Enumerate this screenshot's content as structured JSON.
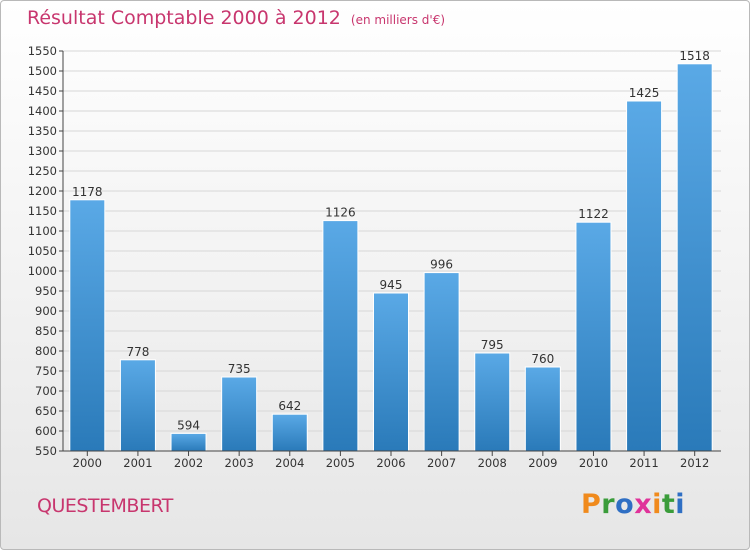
{
  "header": {
    "title": "Résultat Comptable 2000 à 2012",
    "subtitle": "(en milliers d'€)"
  },
  "footer": {
    "town": "QUESTEMBERT",
    "brand": "Proxiti",
    "brand_letters": [
      {
        "char": "P",
        "color": "#f08a1c"
      },
      {
        "char": "r",
        "color": "#3a9c3a"
      },
      {
        "char": "o",
        "color": "#2f6fc4"
      },
      {
        "char": "x",
        "color": "#e0329a"
      },
      {
        "char": "i",
        "color": "#f08a1c"
      },
      {
        "char": "t",
        "color": "#3a9c3a"
      },
      {
        "char": "i",
        "color": "#2f6fc4"
      }
    ]
  },
  "colors": {
    "title": "#c8366e",
    "bar_top": "#5aa9e6",
    "bar_bottom": "#2a7ab9",
    "grid": "#d7d7d7",
    "axis": "#444444",
    "text": "#333333"
  },
  "chart_data": {
    "type": "bar",
    "title": "Résultat Comptable 2000 à 2012",
    "subtitle": "(en milliers d'€)",
    "categories": [
      "2000",
      "2001",
      "2002",
      "2003",
      "2004",
      "2005",
      "2006",
      "2007",
      "2008",
      "2009",
      "2010",
      "2011",
      "2012"
    ],
    "values": [
      1178,
      778,
      594,
      735,
      642,
      1126,
      945,
      996,
      795,
      760,
      1122,
      1425,
      1518
    ],
    "ylim": [
      550,
      1550
    ],
    "ytick_step": 50,
    "grid": true,
    "data_labels": true,
    "xlabel": "",
    "ylabel": ""
  }
}
